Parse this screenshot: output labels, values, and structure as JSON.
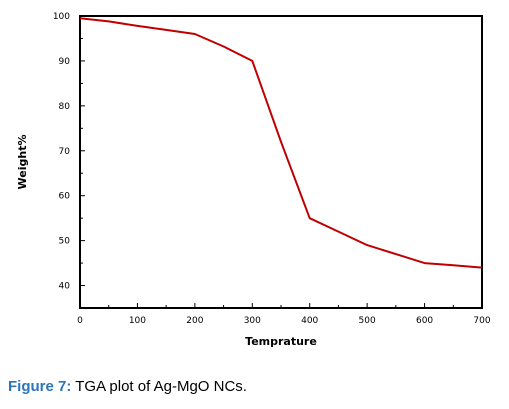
{
  "chart_data": {
    "type": "line",
    "xlabel": "Temprature",
    "ylabel": "Weight%",
    "xlim": [
      0,
      700
    ],
    "ylim": [
      35,
      100
    ],
    "x_ticks": [
      0,
      100,
      200,
      300,
      400,
      500,
      600,
      700
    ],
    "y_ticks": [
      40,
      50,
      60,
      70,
      80,
      90,
      100
    ],
    "grid": false,
    "series": [
      {
        "color": "#c00000",
        "x": [
          0,
          50,
          100,
          150,
          200,
          250,
          300,
          350,
          400,
          450,
          500,
          550,
          600,
          650,
          700
        ],
        "y": [
          99.5,
          98.8,
          97.8,
          96.9,
          96.0,
          93.2,
          90.0,
          72.0,
          55.0,
          52.0,
          49.0,
          47.0,
          45.0,
          44.5,
          44.0
        ]
      }
    ]
  },
  "caption": {
    "label": "Figure 7:",
    "text": " TGA plot of Ag-MgO NCs."
  }
}
